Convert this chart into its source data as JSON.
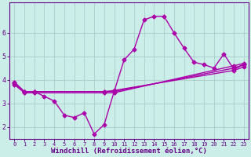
{
  "title": "",
  "xlabel": "Windchill (Refroidissement éolien,°C)",
  "ylabel": "",
  "bg_color": "#cceee8",
  "line_color": "#aa00aa",
  "grid_color": "#aacccc",
  "axis_color": "#660088",
  "xlim": [
    -0.5,
    23.5
  ],
  "ylim": [
    1.5,
    7.3
  ],
  "xticks": [
    0,
    1,
    2,
    3,
    4,
    5,
    6,
    7,
    8,
    9,
    10,
    11,
    12,
    13,
    14,
    15,
    16,
    17,
    18,
    19,
    20,
    21,
    22,
    23
  ],
  "yticks": [
    2,
    3,
    4,
    5,
    6
  ],
  "main_curve_x": [
    0,
    1,
    2,
    3,
    4,
    5,
    6,
    7,
    8,
    9,
    10,
    11,
    12,
    13,
    14,
    15,
    16,
    17,
    18,
    19,
    20,
    21,
    22,
    23
  ],
  "main_curve_y": [
    3.9,
    3.5,
    3.5,
    3.3,
    3.1,
    2.5,
    2.4,
    2.6,
    1.7,
    2.1,
    3.5,
    4.85,
    5.3,
    6.55,
    6.7,
    6.7,
    6.0,
    5.35,
    4.75,
    4.65,
    4.5,
    5.1,
    4.45,
    4.65
  ],
  "line1_x": [
    0,
    1,
    2,
    9,
    10,
    22,
    23
  ],
  "line1_y": [
    3.9,
    3.5,
    3.5,
    3.5,
    3.5,
    4.5,
    4.65
  ],
  "line2_x": [
    0,
    1,
    2,
    9,
    10,
    22,
    23
  ],
  "line2_y": [
    3.85,
    3.5,
    3.5,
    3.5,
    3.55,
    4.4,
    4.55
  ],
  "line3_x": [
    0,
    1,
    2,
    9,
    10,
    22,
    23
  ],
  "line3_y": [
    3.8,
    3.45,
    3.45,
    3.45,
    3.45,
    4.6,
    4.7
  ],
  "marker": "D",
  "markersize": 2.5,
  "linewidth": 1.0
}
